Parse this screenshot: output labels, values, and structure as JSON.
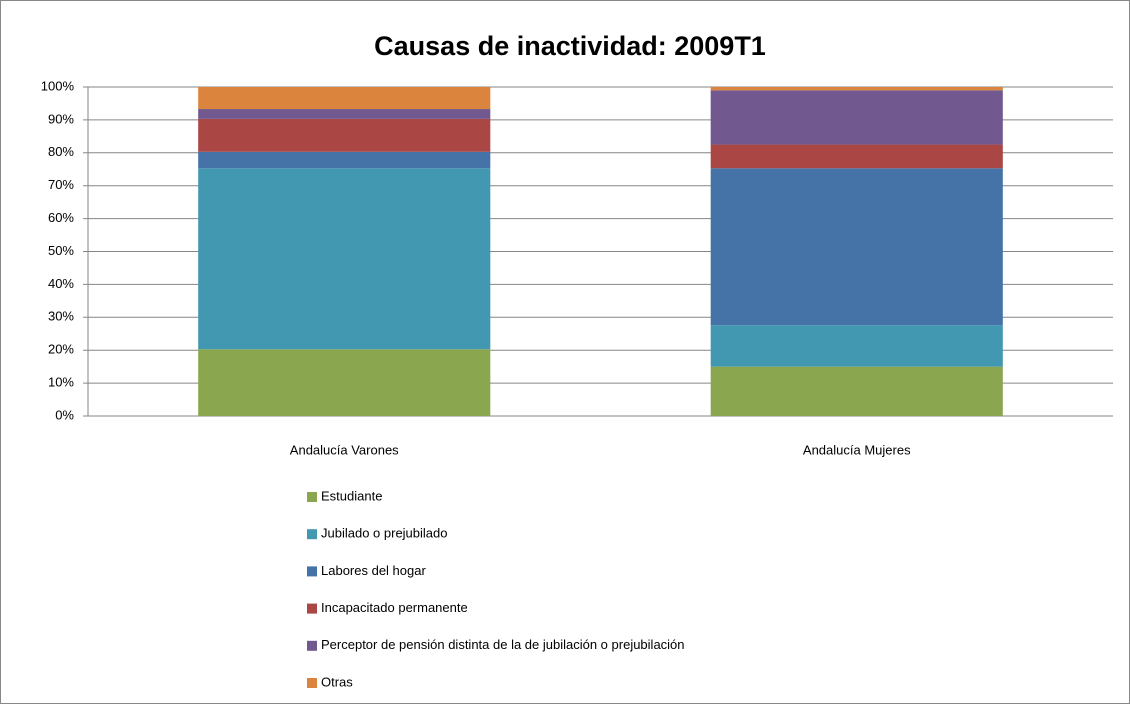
{
  "chart_data": {
    "type": "stacked_bar",
    "title": "Causas de inactividad: 2009T1",
    "categories": [
      "Andalucía Varones",
      "Andalucía Mujeres"
    ],
    "series": [
      {
        "name": "Estudiante",
        "color": "#8aa64e",
        "values": [
          20.3,
          15
        ]
      },
      {
        "name": "Jubilado o prejubilado",
        "color": "#4298b0",
        "values": [
          55,
          12.6
        ]
      },
      {
        "name": "Labores del hogar",
        "color": "#4572a7",
        "values": [
          5,
          47.7
        ]
      },
      {
        "name": "Incapacitado permanente",
        "color": "#aa4643",
        "values": [
          10,
          7.2
        ]
      },
      {
        "name": "Perceptor de pensión distinta de la de jubilación o prejubilación",
        "color": "#71588f",
        "values": [
          3,
          16.5
        ]
      },
      {
        "name": "Otras",
        "color": "#db843d",
        "values": [
          6.7,
          1
        ]
      }
    ],
    "ylim": [
      0,
      100
    ],
    "yticks": [
      {
        "value": 0,
        "label": "0%"
      },
      {
        "value": 10,
        "label": "10%"
      },
      {
        "value": 20,
        "label": "20%"
      },
      {
        "value": 30,
        "label": "30%"
      },
      {
        "value": 40,
        "label": "40%"
      },
      {
        "value": 50,
        "label": "50%"
      },
      {
        "value": 60,
        "label": "60%"
      },
      {
        "value": 70,
        "label": "70%"
      },
      {
        "value": 80,
        "label": "80%"
      },
      {
        "value": 90,
        "label": "90%"
      },
      {
        "value": 100,
        "label": "100%"
      }
    ],
    "grid": true,
    "legend": "bottom"
  }
}
